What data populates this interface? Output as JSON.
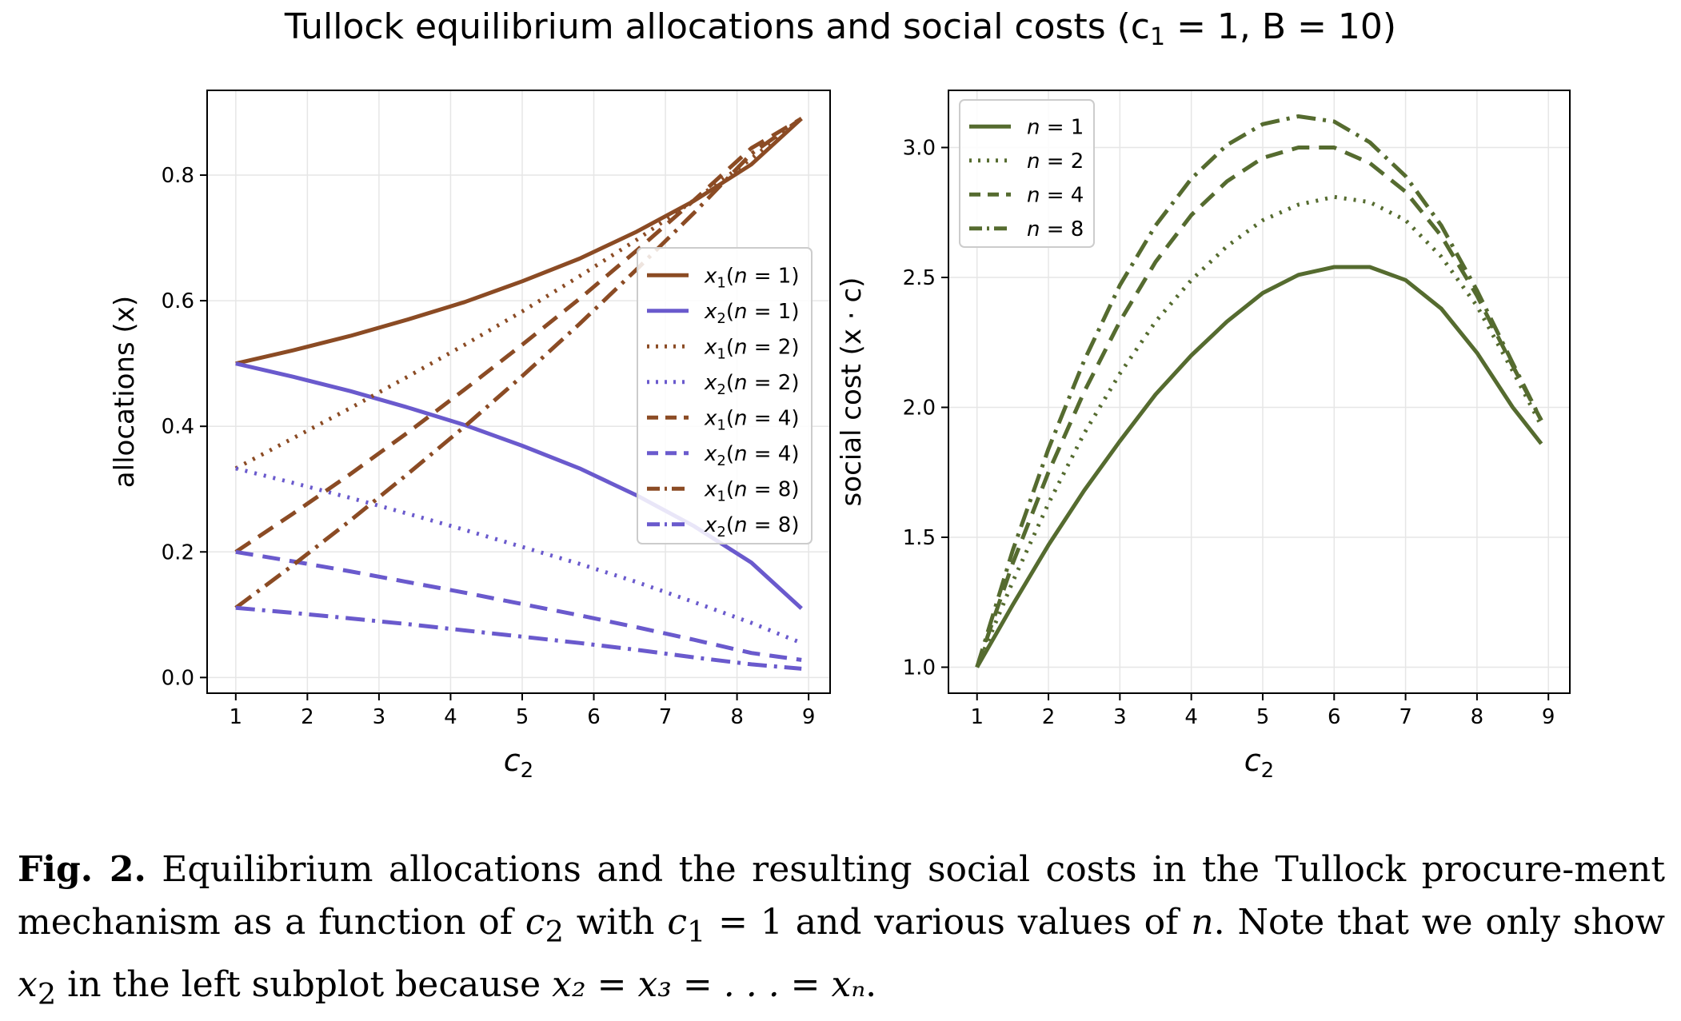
{
  "figure_title": "Tullock equilibrium allocations and social costs (c",
  "figure_title_sub1": "1",
  "figure_title_rest": " = 1, B = 10)",
  "caption": {
    "label": "Fig. 2.",
    "part1": " Equilibrium allocations and the resulting social costs in the Tullock procure-ment mechanism as a function of ",
    "c2_base": "c",
    "c2_sub": "2",
    "part2": " with ",
    "c1_base": "c",
    "c1_sub": "1",
    "part3": " = 1 and various values of ",
    "n": "n",
    "part4": ". Note that we only show ",
    "x2_base": "x",
    "x2_sub": "2",
    "part5": " in the left subplot because ",
    "eq": "x₂ = x₃ = . . . = xₙ",
    "part6": "."
  },
  "colors": {
    "brown": "#8B4B24",
    "purple": "#6A5ACD",
    "olive": "#556B2F",
    "grid": "#e6e6e6"
  },
  "chart_data": [
    {
      "type": "line",
      "ylabel": "allocations (x)",
      "xlabel_base": "c",
      "xlabel_sub": "2",
      "xlim": [
        0.6,
        9.3
      ],
      "ylim": [
        -0.025,
        0.935
      ],
      "xticks": [
        1,
        2,
        3,
        4,
        5,
        6,
        7,
        8,
        9
      ],
      "yticks": [
        0.0,
        0.2,
        0.4,
        0.6,
        0.8
      ],
      "ytick_labels": [
        "0.0",
        "0.2",
        "0.4",
        "0.6",
        "0.8"
      ],
      "legend_position": "center-right",
      "x": [
        1,
        1.8,
        2.6,
        3.4,
        4.2,
        5.0,
        5.8,
        6.6,
        7.4,
        8.2,
        8.9
      ],
      "series": [
        {
          "name": "x1(n = 1)",
          "var": "x",
          "sub": "1",
          "n": "1",
          "color": "brown",
          "dash": "solid",
          "values": [
            0.5,
            0.521,
            0.544,
            0.57,
            0.598,
            0.631,
            0.667,
            0.71,
            0.759,
            0.817,
            0.89
          ]
        },
        {
          "name": "x2(n = 1)",
          "var": "x",
          "sub": "2",
          "n": "1",
          "color": "purple",
          "dash": "solid",
          "values": [
            0.5,
            0.479,
            0.456,
            0.43,
            0.402,
            0.369,
            0.333,
            0.29,
            0.241,
            0.183,
            0.11
          ]
        },
        {
          "name": "x1(n = 2)",
          "var": "x",
          "sub": "1",
          "n": "2",
          "color": "brown",
          "dash": "dotted",
          "values": [
            0.333,
            0.381,
            0.429,
            0.479,
            0.53,
            0.583,
            0.639,
            0.697,
            0.76,
            0.826,
            0.89
          ]
        },
        {
          "name": "x2(n = 2)",
          "var": "x",
          "sub": "2",
          "n": "2",
          "color": "purple",
          "dash": "dotted",
          "values": [
            0.333,
            0.31,
            0.286,
            0.261,
            0.235,
            0.208,
            0.181,
            0.152,
            0.12,
            0.087,
            0.055
          ]
        },
        {
          "name": "x1(n = 4)",
          "var": "x",
          "sub": "1",
          "n": "4",
          "color": "brown",
          "dash": "dashed",
          "values": [
            0.2,
            0.261,
            0.324,
            0.39,
            0.459,
            0.53,
            0.603,
            0.68,
            0.76,
            0.843,
            0.89
          ]
        },
        {
          "name": "x2(n = 4)",
          "var": "x",
          "sub": "2",
          "n": "4",
          "color": "purple",
          "dash": "dashed",
          "values": [
            0.2,
            0.185,
            0.169,
            0.152,
            0.135,
            0.117,
            0.099,
            0.08,
            0.06,
            0.039,
            0.028
          ]
        },
        {
          "name": "x1(n = 8)",
          "var": "x",
          "sub": "1",
          "n": "8",
          "color": "brown",
          "dash": "dashdot",
          "values": [
            0.111,
            0.179,
            0.25,
            0.324,
            0.4,
            0.48,
            0.563,
            0.65,
            0.74,
            0.834,
            0.89
          ]
        },
        {
          "name": "x2(n = 8)",
          "var": "x",
          "sub": "2",
          "n": "8",
          "color": "purple",
          "dash": "dashdot",
          "values": [
            0.111,
            0.103,
            0.094,
            0.085,
            0.075,
            0.065,
            0.055,
            0.044,
            0.032,
            0.021,
            0.014
          ]
        }
      ]
    },
    {
      "type": "line",
      "ylabel": "social cost (x · c)",
      "xlabel_base": "c",
      "xlabel_sub": "2",
      "xlim": [
        0.6,
        9.3
      ],
      "ylim": [
        0.9,
        3.22
      ],
      "xticks": [
        1,
        2,
        3,
        4,
        5,
        6,
        7,
        8,
        9
      ],
      "yticks": [
        1.0,
        1.5,
        2.0,
        2.5,
        3.0
      ],
      "ytick_labels": [
        "1.0",
        "1.5",
        "2.0",
        "2.5",
        "3.0"
      ],
      "legend_position": "top-left",
      "x": [
        1,
        1.5,
        2,
        2.5,
        3,
        3.5,
        4,
        4.5,
        5,
        5.5,
        6,
        6.5,
        7,
        7.5,
        8,
        8.5,
        8.9
      ],
      "series": [
        {
          "name": "n = 1",
          "n": "1",
          "color": "olive",
          "dash": "solid",
          "values": [
            1.0,
            1.24,
            1.47,
            1.68,
            1.87,
            2.05,
            2.2,
            2.33,
            2.44,
            2.51,
            2.54,
            2.54,
            2.49,
            2.38,
            2.21,
            2.0,
            1.86
          ]
        },
        {
          "name": "n = 2",
          "n": "2",
          "color": "olive",
          "dash": "dotted",
          "values": [
            1.0,
            1.33,
            1.63,
            1.9,
            2.13,
            2.33,
            2.49,
            2.62,
            2.72,
            2.78,
            2.81,
            2.79,
            2.72,
            2.58,
            2.39,
            2.14,
            1.93
          ]
        },
        {
          "name": "n = 4",
          "n": "4",
          "color": "olive",
          "dash": "dashed",
          "values": [
            1.0,
            1.4,
            1.75,
            2.06,
            2.33,
            2.56,
            2.74,
            2.87,
            2.96,
            3.0,
            3.0,
            2.94,
            2.83,
            2.66,
            2.43,
            2.16,
            1.95
          ]
        },
        {
          "name": "n = 8",
          "n": "8",
          "color": "olive",
          "dash": "dashdot",
          "values": [
            1.0,
            1.45,
            1.84,
            2.18,
            2.47,
            2.7,
            2.88,
            3.01,
            3.09,
            3.12,
            3.1,
            3.02,
            2.89,
            2.7,
            2.45,
            2.17,
            1.95
          ]
        }
      ]
    }
  ]
}
